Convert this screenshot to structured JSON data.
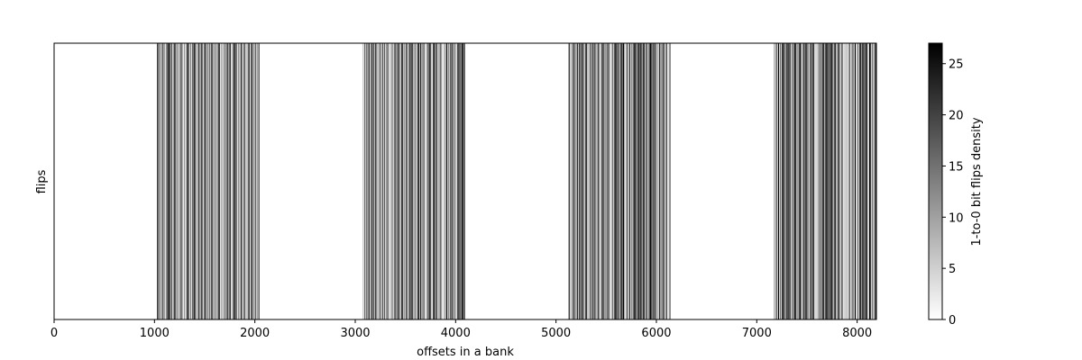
{
  "chart_data": {
    "type": "heatmap",
    "title": "",
    "xlabel": "offsets in a bank",
    "ylabel": "flips",
    "xlim": [
      0,
      8192
    ],
    "x_ticks": [
      0,
      1000,
      2000,
      3000,
      4000,
      5000,
      6000,
      7000,
      8000
    ],
    "y_ticks": [],
    "bands": [
      {
        "start": 1024,
        "end": 2048
      },
      {
        "start": 3072,
        "end": 4096
      },
      {
        "start": 5120,
        "end": 6144
      },
      {
        "start": 7168,
        "end": 8192
      }
    ],
    "typical_density": 12,
    "colorbar": {
      "label": "1-to-0 bit flips density",
      "min": 0,
      "max": 27,
      "ticks": [
        0,
        5,
        10,
        15,
        20,
        25
      ],
      "colormap": "gray_r"
    },
    "grid": false
  },
  "colors": {
    "background": "#ffffff",
    "axis": "#000000",
    "low": "#ffffff",
    "high": "#000000"
  }
}
